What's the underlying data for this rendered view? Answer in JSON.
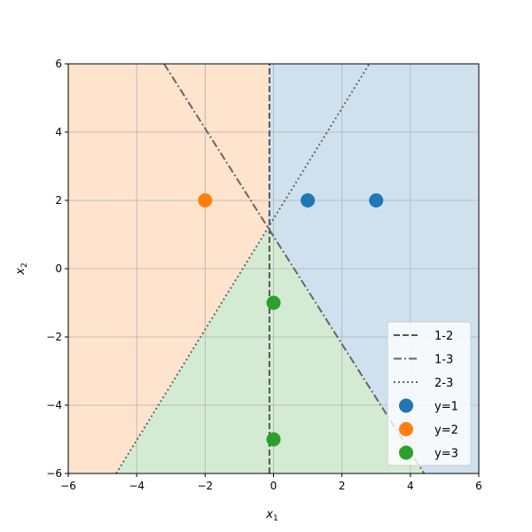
{
  "chart_data": {
    "type": "scatter",
    "xlabel": "x",
    "xlabel_sub": "1",
    "ylabel": "x",
    "ylabel_sub": "2",
    "xlim": [
      -6,
      6
    ],
    "ylim": [
      -6,
      6
    ],
    "xticks": [
      -6,
      -4,
      -2,
      0,
      2,
      4,
      6
    ],
    "yticks": [
      -6,
      -4,
      -2,
      0,
      2,
      4,
      6
    ],
    "xtick_labels": [
      "−6",
      "−4",
      "−2",
      "0",
      "2",
      "4",
      "6"
    ],
    "ytick_labels": [
      "−6",
      "−4",
      "−2",
      "0",
      "2",
      "4",
      "6"
    ],
    "grid": true,
    "legend_position": "lower-right",
    "regions": [
      {
        "class": "1",
        "color": "#cfe1ef"
      },
      {
        "class": "2",
        "color": "#fee3cd"
      },
      {
        "class": "3",
        "color": "#d4ebd3"
      }
    ],
    "boundaries": [
      {
        "name": "1-2",
        "style": "dashed",
        "color": "#555555",
        "points": [
          [
            -0.12,
            -6
          ],
          [
            -0.12,
            6
          ]
        ]
      },
      {
        "name": "1-3",
        "style": "dashdot",
        "color": "#666666",
        "points": [
          [
            -3.2,
            6
          ],
          [
            4.4,
            -6
          ]
        ]
      },
      {
        "name": "2-3",
        "style": "dotted",
        "color": "#666666",
        "points": [
          [
            -4.6,
            -6
          ],
          [
            2.8,
            6
          ]
        ]
      }
    ],
    "series": [
      {
        "name": "y=1",
        "color": "#1f77b4",
        "points": [
          [
            1,
            2
          ],
          [
            3,
            2
          ]
        ]
      },
      {
        "name": "y=2",
        "color": "#ff7f0e",
        "points": [
          [
            -2,
            2
          ]
        ]
      },
      {
        "name": "y=3",
        "color": "#2ca02c",
        "points": [
          [
            0,
            -1
          ],
          [
            0,
            -5
          ]
        ]
      }
    ]
  }
}
